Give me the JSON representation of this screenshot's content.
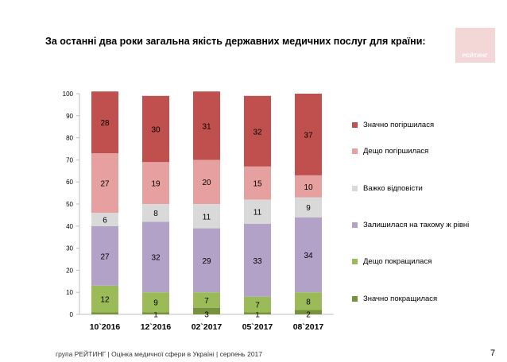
{
  "title": "За останні два роки загальна якість державних медичних послуг для країни:",
  "logo": {
    "text": "РЕЙТИНГ",
    "color": "#f3d6d6"
  },
  "footer": "група РЕЙТИНГ  |  Оцінка медичної сфери в Україні  |  серпень 2017",
  "page_number": "7",
  "chart_data": {
    "type": "bar",
    "stacked": true,
    "categories": [
      "10`2016",
      "12`2016",
      "02`2017",
      "05`2017",
      "08`2017"
    ],
    "ylim": [
      0,
      100
    ],
    "yticks": [
      "0",
      "10",
      "20",
      "30",
      "40",
      "50",
      "60",
      "70",
      "80",
      "90",
      "100"
    ],
    "legend_position": "right",
    "series": [
      {
        "name": "Значно покращилася",
        "color": "#76923c",
        "values": [
          1,
          1,
          3,
          1,
          2
        ],
        "labels": [
          "",
          "1",
          "3",
          "1",
          "2"
        ]
      },
      {
        "name": "Дещо покращилася",
        "color": "#9bbb59",
        "values": [
          12,
          9,
          7,
          7,
          8
        ],
        "labels": [
          "12",
          "9",
          "7",
          "7",
          "8"
        ]
      },
      {
        "name": "Залишилася на такому ж рівні",
        "color": "#b3a2c7",
        "values": [
          27,
          32,
          29,
          33,
          34
        ],
        "labels": [
          "27",
          "32",
          "29",
          "33",
          "34"
        ]
      },
      {
        "name": "Важко відповісти",
        "color": "#d9d9d9",
        "values": [
          6,
          8,
          11,
          11,
          9
        ],
        "labels": [
          "6",
          "8",
          "11",
          "11",
          "9"
        ]
      },
      {
        "name": "Дещо погіршилася",
        "color": "#e6a0a0",
        "values": [
          27,
          19,
          20,
          15,
          10
        ],
        "labels": [
          "27",
          "19",
          "20",
          "15",
          "10"
        ]
      },
      {
        "name": "Значно погіршилася",
        "color": "#c0504d",
        "values": [
          28,
          30,
          31,
          32,
          37
        ],
        "labels": [
          "28",
          "30",
          "31",
          "32",
          "37"
        ]
      }
    ]
  }
}
